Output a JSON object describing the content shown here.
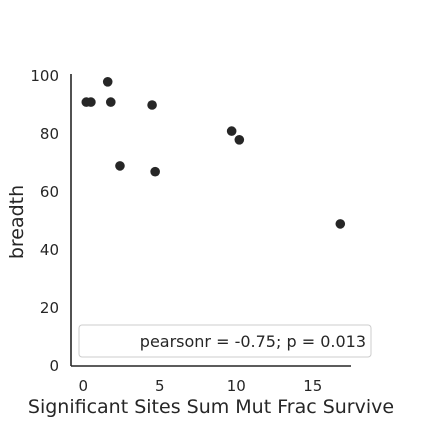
{
  "chart_data": {
    "type": "scatter",
    "title": "",
    "xlabel": "Significant Sites Sum Mut Frac Survive",
    "ylabel": "breadth",
    "xlim": [
      -0.8,
      17.5
    ],
    "ylim": [
      0,
      100
    ],
    "xticks": [
      0,
      5,
      10,
      15
    ],
    "yticks": [
      0,
      20,
      40,
      60,
      80,
      100
    ],
    "grid": false,
    "point_color": "#262626",
    "series": [
      {
        "x": [
          0.2,
          0.5,
          1.6,
          1.8,
          2.4,
          4.5,
          4.7,
          9.7,
          10.2,
          16.8
        ],
        "y": [
          91,
          91,
          98,
          91,
          69,
          90,
          67,
          81,
          78,
          49
        ]
      }
    ],
    "legend": {
      "placement": "lower-right",
      "text": "pearsonr = -0.75; p = 0.013"
    }
  }
}
